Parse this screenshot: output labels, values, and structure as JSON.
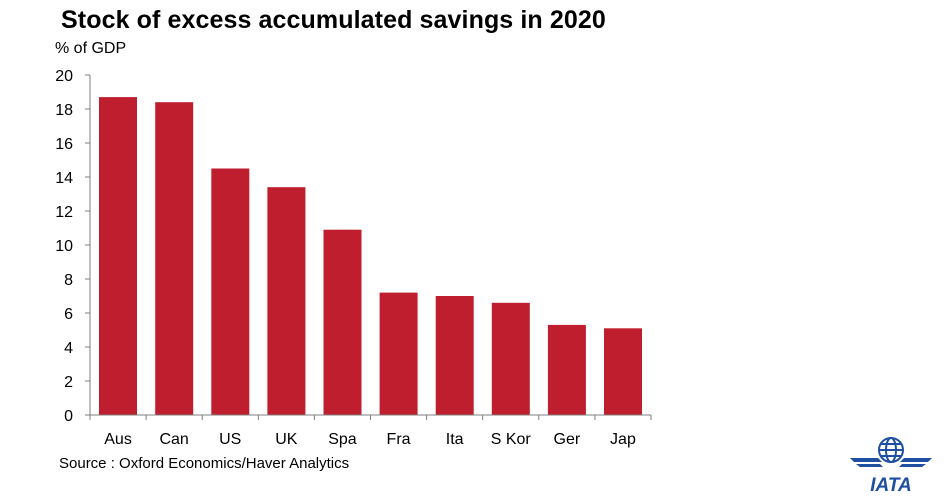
{
  "chart_data": {
    "type": "bar",
    "title": "Stock of excess accumulated savings in 2020",
    "ylabel": "% of GDP",
    "xlabel": "",
    "categories": [
      "Aus",
      "Can",
      "US",
      "UK",
      "Spa",
      "Fra",
      "Ita",
      "S Kor",
      "Ger",
      "Jap"
    ],
    "values": [
      18.7,
      18.4,
      14.5,
      13.4,
      10.9,
      7.2,
      7.0,
      6.6,
      5.3,
      5.1
    ],
    "ylim": [
      0,
      20
    ],
    "yticks": [
      0,
      2,
      4,
      6,
      8,
      10,
      12,
      14,
      16,
      18,
      20
    ],
    "bar_color": "#be1e2d",
    "grid": false,
    "legend": "none"
  },
  "source": "Source : Oxford Economics/Haver Analytics",
  "logo": {
    "text": "IATA",
    "icon": "iata-globe-icon",
    "color": "#1e4fa0"
  }
}
